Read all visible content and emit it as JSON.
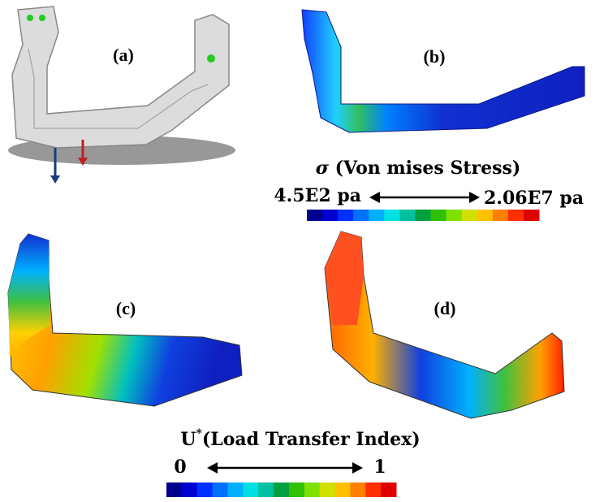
{
  "panels": [
    {
      "label": "(a)"
    },
    {
      "label": "(b)"
    },
    {
      "label": "(c)"
    },
    {
      "label": "(d)"
    }
  ],
  "stress_legend": {
    "symbol": "σ",
    "title": "(Von mises Stress)",
    "min_label": "4.5E2 pa",
    "max_label": "2.06E7 pa"
  },
  "index_legend": {
    "symbol": "U",
    "superscript": "*",
    "title": "(Load Transfer Index)",
    "min_label": "0",
    "max_label": "1"
  }
}
